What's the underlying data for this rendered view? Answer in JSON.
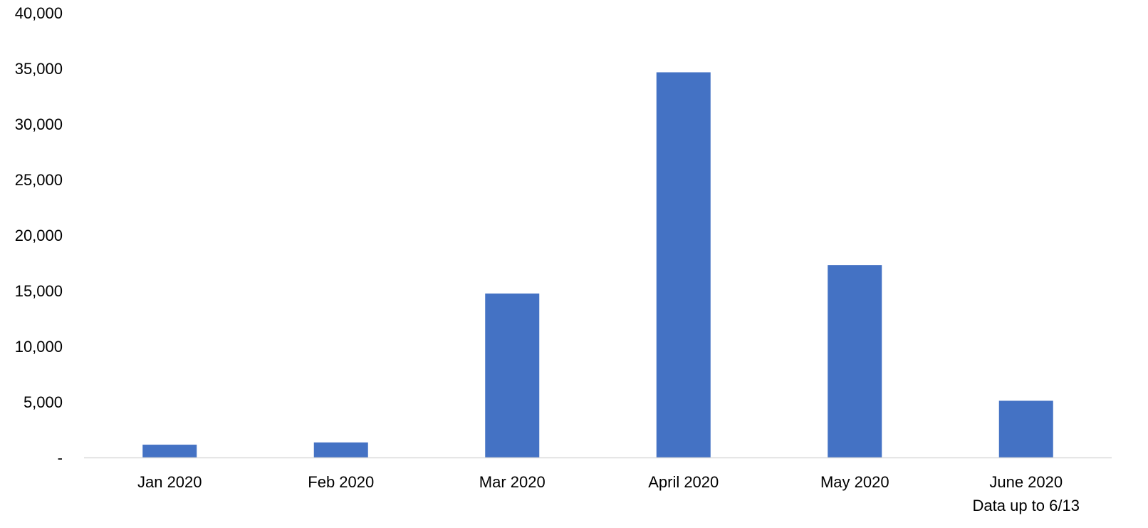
{
  "chart_data": {
    "type": "bar",
    "categories": [
      "Jan 2020",
      "Feb 2020",
      "Mar 2020",
      "April 2020",
      "May 2020",
      "June 2020"
    ],
    "category_sublabels": [
      "",
      "",
      "",
      "",
      "",
      "Data up to 6/13"
    ],
    "values": [
      1150,
      1350,
      14750,
      34650,
      17300,
      5100
    ],
    "ylim": [
      0,
      40000
    ],
    "yticks": [
      0,
      5000,
      10000,
      15000,
      20000,
      25000,
      30000,
      35000,
      40000
    ],
    "ytick_labels": [
      "-",
      "5,000",
      "10,000",
      "15,000",
      "20,000",
      "25,000",
      "30,000",
      "35,000",
      "40,000"
    ],
    "grid": false,
    "legend": "none",
    "colors": {
      "bar": "#4472C4",
      "axis": "#D9D9D9",
      "text": "#000000"
    }
  }
}
